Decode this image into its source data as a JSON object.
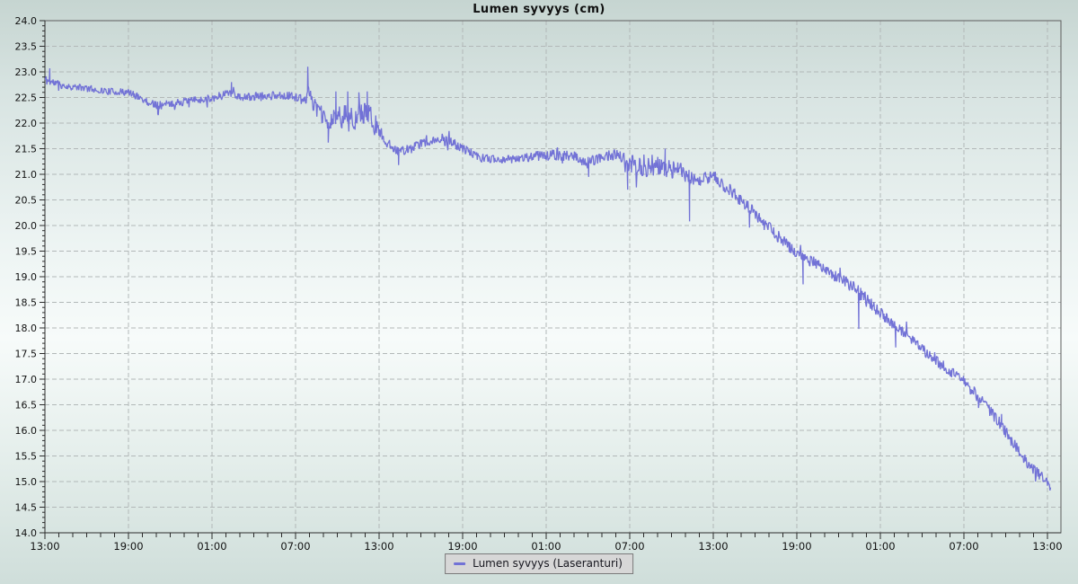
{
  "chart_data": {
    "type": "line",
    "title": "Lumen syvyys (cm)",
    "xlabel": "",
    "ylabel": "",
    "grid": {
      "style": "dashed",
      "horizontal_every": 0.5,
      "vertical_every_hours": 6
    },
    "legend_position": "bottom-center",
    "x_axis": {
      "kind": "time",
      "hours_span": 72,
      "major_tick_every_hours": 6,
      "minor_tick_every_hours": 1,
      "tick_labels": [
        "13:00",
        "19:00",
        "01:00",
        "07:00",
        "13:00",
        "19:00",
        "01:00",
        "07:00",
        "13:00",
        "19:00",
        "01:00",
        "07:00",
        "13:00"
      ]
    },
    "y_axis": {
      "min": 14.0,
      "max": 24.0,
      "major_step": 0.5,
      "minor_step": 0.1,
      "tick_labels": [
        "24.0",
        "23.5",
        "23.0",
        "22.5",
        "22.0",
        "21.5",
        "21.0",
        "20.5",
        "20.0",
        "19.5",
        "19.0",
        "18.5",
        "18.0",
        "17.5",
        "17.0",
        "16.5",
        "16.0",
        "15.5",
        "15.0",
        "14.5",
        "14.0"
      ]
    },
    "series": [
      {
        "name": "Lumen syvyys (Laseranturi)",
        "color": "#7272d6",
        "sample_step_hours": 0.045,
        "end_hour": 72.25,
        "noise_seed": 11,
        "trend_points": [
          [
            0,
            22.85,
            0.1
          ],
          [
            0.5,
            22.8,
            0.1
          ],
          [
            1.5,
            22.72,
            0.07
          ],
          [
            3,
            22.68,
            0.07
          ],
          [
            4.5,
            22.62,
            0.07
          ],
          [
            6,
            22.6,
            0.07
          ],
          [
            6.8,
            22.5,
            0.08
          ],
          [
            7.6,
            22.38,
            0.08
          ],
          [
            8.5,
            22.35,
            0.09
          ],
          [
            10,
            22.42,
            0.08
          ],
          [
            11.5,
            22.47,
            0.08
          ],
          [
            12.5,
            22.52,
            0.09
          ],
          [
            13.3,
            22.62,
            0.1
          ],
          [
            14,
            22.5,
            0.08
          ],
          [
            15.5,
            22.52,
            0.09
          ],
          [
            17,
            22.55,
            0.08
          ],
          [
            18.2,
            22.5,
            0.09
          ],
          [
            18.7,
            22.42,
            0.1
          ],
          [
            18.95,
            22.7,
            0.12
          ],
          [
            19.3,
            22.35,
            0.15
          ],
          [
            19.9,
            22.15,
            0.18
          ],
          [
            20.4,
            21.95,
            0.15
          ],
          [
            20.9,
            22.15,
            0.25
          ],
          [
            21.7,
            22.1,
            0.28
          ],
          [
            22.5,
            22.15,
            0.28
          ],
          [
            23.2,
            22.2,
            0.25
          ],
          [
            23.9,
            21.9,
            0.15
          ],
          [
            24.5,
            21.62,
            0.1
          ],
          [
            25.5,
            21.45,
            0.1
          ],
          [
            26.3,
            21.5,
            0.1
          ],
          [
            27.2,
            21.62,
            0.09
          ],
          [
            28.2,
            21.68,
            0.09
          ],
          [
            29.2,
            21.62,
            0.1
          ],
          [
            30.2,
            21.48,
            0.1
          ],
          [
            31.2,
            21.32,
            0.09
          ],
          [
            32,
            21.3,
            0.08
          ],
          [
            33.5,
            21.3,
            0.09
          ],
          [
            35,
            21.35,
            0.1
          ],
          [
            36.5,
            21.38,
            0.11
          ],
          [
            38,
            21.35,
            0.12
          ],
          [
            39,
            21.22,
            0.13
          ],
          [
            40,
            21.33,
            0.1
          ],
          [
            41,
            21.4,
            0.12
          ],
          [
            41.8,
            21.2,
            0.22
          ],
          [
            42.6,
            21.18,
            0.22
          ],
          [
            43.6,
            21.15,
            0.22
          ],
          [
            44.6,
            21.12,
            0.2
          ],
          [
            45.6,
            21.05,
            0.18
          ],
          [
            46.4,
            20.9,
            0.2
          ],
          [
            47.2,
            20.92,
            0.16
          ],
          [
            48,
            20.95,
            0.14
          ],
          [
            48.9,
            20.75,
            0.14
          ],
          [
            49.8,
            20.55,
            0.13
          ],
          [
            50.8,
            20.28,
            0.13
          ],
          [
            51.8,
            20.0,
            0.13
          ],
          [
            52.8,
            19.75,
            0.12
          ],
          [
            53.8,
            19.5,
            0.12
          ],
          [
            54.8,
            19.33,
            0.12
          ],
          [
            55.8,
            19.18,
            0.11
          ],
          [
            56.8,
            19.0,
            0.11
          ],
          [
            57.8,
            18.85,
            0.13
          ],
          [
            58.8,
            18.6,
            0.14
          ],
          [
            59.8,
            18.35,
            0.13
          ],
          [
            60.8,
            18.1,
            0.11
          ],
          [
            61.8,
            17.9,
            0.11
          ],
          [
            62.8,
            17.62,
            0.11
          ],
          [
            63.8,
            17.4,
            0.11
          ],
          [
            64.8,
            17.2,
            0.11
          ],
          [
            65.8,
            17.0,
            0.11
          ],
          [
            66.8,
            16.72,
            0.12
          ],
          [
            67.8,
            16.4,
            0.13
          ],
          [
            68.8,
            16.05,
            0.13
          ],
          [
            69.8,
            15.65,
            0.13
          ],
          [
            70.8,
            15.3,
            0.13
          ],
          [
            71.5,
            15.12,
            0.12
          ],
          [
            72.0,
            14.95,
            0.1
          ],
          [
            72.25,
            14.85,
            0.07
          ]
        ],
        "spike_points": [
          [
            0.35,
            23.07
          ],
          [
            8.1,
            22.18
          ],
          [
            13.4,
            22.8
          ],
          [
            18.88,
            23.1
          ],
          [
            20.35,
            21.62
          ],
          [
            20.9,
            22.62
          ],
          [
            21.75,
            22.62
          ],
          [
            22.55,
            22.6
          ],
          [
            23.15,
            22.62
          ],
          [
            25.4,
            21.18
          ],
          [
            39.05,
            20.95
          ],
          [
            41.85,
            20.7
          ],
          [
            44.55,
            21.5
          ],
          [
            46.3,
            20.08
          ],
          [
            50.6,
            19.96
          ],
          [
            54.45,
            18.85
          ],
          [
            58.45,
            17.98
          ],
          [
            61.1,
            17.62
          ],
          [
            68.7,
            16.32
          ]
        ]
      }
    ]
  },
  "colors": {
    "grid": "#b2b8b8",
    "frame": "#5d5d5d",
    "axis": "#2b2b2b",
    "tick_text": "#111111",
    "legend_bg": "#d7d7d7",
    "legend_border": "#7a7a7a",
    "line": "#7272d6"
  }
}
